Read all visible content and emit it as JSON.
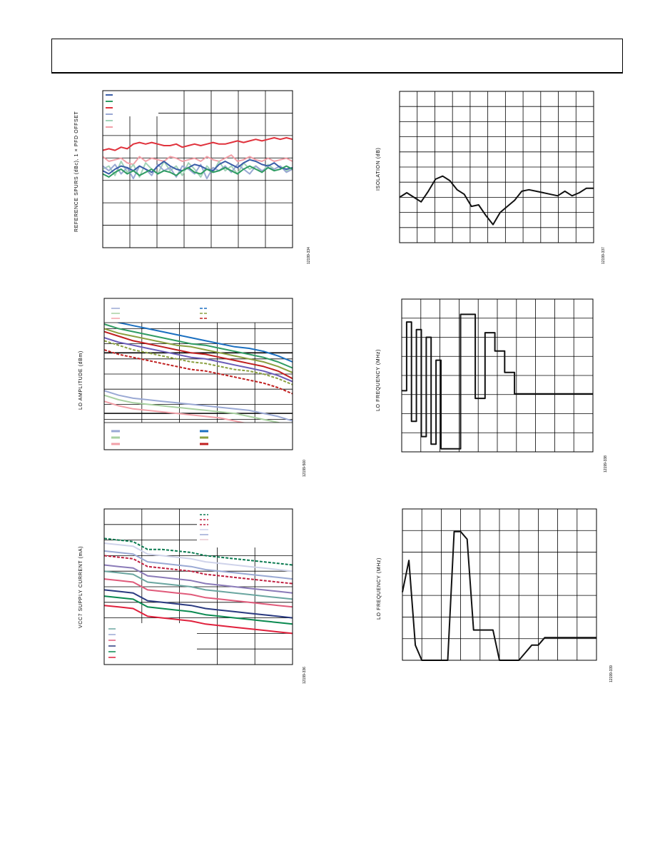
{
  "page": {
    "header": ""
  },
  "chart_data": [
    {
      "type": "line",
      "ylabel": "REFERENCE SPURS (dBc), 1 × PFD OFFSET",
      "fig_id": "12199-334",
      "legend_colors": [
        "#3a5da8",
        "#2f9c63",
        "#e0323c",
        "#9aa9d4",
        "#a3d3b9",
        "#f2a0a8"
      ],
      "grid": true,
      "series": [
        {
          "color": "#e0323c",
          "values": [
            0.62,
            0.63,
            0.62,
            0.64,
            0.63,
            0.66,
            0.67,
            0.66,
            0.67,
            0.66,
            0.65,
            0.65,
            0.66,
            0.64,
            0.65,
            0.66,
            0.65,
            0.66,
            0.67,
            0.66,
            0.66,
            0.67,
            0.68,
            0.67,
            0.68,
            0.69,
            0.68,
            0.69,
            0.7,
            0.69,
            0.7,
            0.69
          ]
        },
        {
          "color": "#f2a0a8",
          "values": [
            0.58,
            0.55,
            0.56,
            0.57,
            0.54,
            0.53,
            0.58,
            0.55,
            0.57,
            0.56,
            0.55,
            0.58,
            0.57,
            0.55,
            0.56,
            0.57,
            0.55,
            0.58,
            0.56,
            0.55,
            0.57,
            0.59,
            0.55,
            0.56,
            0.58,
            0.56,
            0.55,
            0.57,
            0.55,
            0.56,
            0.57,
            0.55
          ]
        },
        {
          "color": "#a3d3b9",
          "values": [
            0.5,
            0.52,
            0.46,
            0.55,
            0.48,
            0.53,
            0.45,
            0.54,
            0.5,
            0.47,
            0.55,
            0.49,
            0.52,
            0.46,
            0.54,
            0.5,
            0.45,
            0.52,
            0.48,
            0.55,
            0.49,
            0.52,
            0.47,
            0.54,
            0.5,
            0.52,
            0.48,
            0.53,
            0.5,
            0.52,
            0.49,
            0.51
          ]
        },
        {
          "color": "#9aa9d4",
          "values": [
            0.52,
            0.49,
            0.53,
            0.47,
            0.51,
            0.44,
            0.52,
            0.5,
            0.46,
            0.53,
            0.49,
            0.51,
            0.45,
            0.52,
            0.5,
            0.47,
            0.53,
            0.44,
            0.51,
            0.49,
            0.52,
            0.48,
            0.53,
            0.5,
            0.47,
            0.52,
            0.49,
            0.51,
            0.5,
            0.52,
            0.48,
            0.5
          ]
        },
        {
          "color": "#3a5da8",
          "values": [
            0.49,
            0.47,
            0.5,
            0.52,
            0.51,
            0.49,
            0.52,
            0.5,
            0.48,
            0.52,
            0.55,
            0.52,
            0.5,
            0.49,
            0.51,
            0.53,
            0.52,
            0.5,
            0.49,
            0.53,
            0.55,
            0.53,
            0.51,
            0.54,
            0.56,
            0.55,
            0.53,
            0.52,
            0.54,
            0.51,
            0.5,
            0.51
          ]
        },
        {
          "color": "#2f9c63",
          "values": [
            0.47,
            0.45,
            0.48,
            0.5,
            0.47,
            0.49,
            0.46,
            0.48,
            0.5,
            0.47,
            0.49,
            0.48,
            0.46,
            0.49,
            0.51,
            0.48,
            0.47,
            0.5,
            0.48,
            0.49,
            0.51,
            0.49,
            0.47,
            0.5,
            0.52,
            0.5,
            0.48,
            0.51,
            0.49,
            0.5,
            0.52,
            0.5
          ]
        }
      ]
    },
    {
      "type": "line",
      "ylabel": "ISOLATION (dB)",
      "fig_id": "12199-337",
      "grid": true,
      "series": [
        {
          "color": "#111111",
          "values": [
            0.3,
            0.33,
            0.3,
            0.27,
            0.34,
            0.42,
            0.44,
            0.41,
            0.35,
            0.32,
            0.24,
            0.25,
            0.18,
            0.12,
            0.2,
            0.24,
            0.28,
            0.34,
            0.35,
            0.34,
            0.33,
            0.32,
            0.31,
            0.34,
            0.31,
            0.33,
            0.36,
            0.36
          ]
        }
      ]
    },
    {
      "type": "line",
      "ylabel": "LO AMPLITUDE (dBm)",
      "fig_id": "12199-500",
      "legend_colors": [
        "#9aa9d4",
        "#a8d0a0",
        "#f2a0a8",
        "#1a6fc0",
        "#8aa040",
        "#c02020"
      ],
      "grid": true,
      "series": [
        {
          "color": "#1a6fc0",
          "dashed": false,
          "values": [
            0.87,
            0.84,
            0.82,
            0.8,
            0.78,
            0.76,
            0.74,
            0.72,
            0.7,
            0.68,
            0.67,
            0.65,
            0.62,
            0.58
          ]
        },
        {
          "color": "#2f9c63",
          "dashed": false,
          "values": [
            0.83,
            0.8,
            0.78,
            0.76,
            0.74,
            0.72,
            0.7,
            0.69,
            0.67,
            0.65,
            0.63,
            0.61,
            0.58,
            0.54
          ]
        },
        {
          "color": "#8aa040",
          "dashed": false,
          "values": [
            0.8,
            0.77,
            0.75,
            0.73,
            0.71,
            0.69,
            0.68,
            0.66,
            0.64,
            0.62,
            0.6,
            0.58,
            0.55,
            0.51
          ]
        },
        {
          "color": "#c02020",
          "dashed": false,
          "values": [
            0.78,
            0.75,
            0.72,
            0.7,
            0.68,
            0.66,
            0.64,
            0.63,
            0.61,
            0.59,
            0.57,
            0.55,
            0.52,
            0.47
          ]
        },
        {
          "color": "#6a5db8",
          "dashed": false,
          "values": [
            0.74,
            0.71,
            0.69,
            0.67,
            0.65,
            0.63,
            0.61,
            0.6,
            0.58,
            0.56,
            0.54,
            0.52,
            0.49,
            0.45
          ]
        },
        {
          "color": "#8aa040",
          "dashed": true,
          "values": [
            0.72,
            0.69,
            0.66,
            0.64,
            0.62,
            0.6,
            0.58,
            0.57,
            0.55,
            0.53,
            0.52,
            0.5,
            0.47,
            0.43
          ]
        },
        {
          "color": "#c02020",
          "dashed": true,
          "values": [
            0.66,
            0.63,
            0.61,
            0.59,
            0.57,
            0.55,
            0.53,
            0.52,
            0.5,
            0.48,
            0.46,
            0.44,
            0.41,
            0.37
          ]
        },
        {
          "color": "#9aa9d4",
          "dashed": false,
          "values": [
            0.39,
            0.36,
            0.34,
            0.33,
            0.32,
            0.31,
            0.3,
            0.29,
            0.28,
            0.27,
            0.26,
            0.24,
            0.22,
            0.19
          ]
        },
        {
          "color": "#a8d0a0",
          "dashed": false,
          "values": [
            0.36,
            0.33,
            0.31,
            0.3,
            0.29,
            0.28,
            0.27,
            0.26,
            0.25,
            0.24,
            0.22,
            0.2,
            0.18,
            0.15
          ]
        },
        {
          "color": "#f2a0a8",
          "dashed": false,
          "values": [
            0.32,
            0.29,
            0.27,
            0.26,
            0.25,
            0.24,
            0.23,
            0.22,
            0.21,
            0.19,
            0.17,
            0.15,
            0.12,
            0.09
          ]
        }
      ]
    },
    {
      "type": "line",
      "ylabel": "LO FREQUENCY (MHz)",
      "fig_id": "12199-338",
      "grid": true,
      "series": [
        {
          "color": "#111111",
          "step": true,
          "values": [
            0.4,
            0.85,
            0.2,
            0.8,
            0.1,
            0.75,
            0.05,
            0.6,
            0.02,
            0.02,
            0.02,
            0.02,
            0.9,
            0.9,
            0.9,
            0.35,
            0.35,
            0.78,
            0.78,
            0.66,
            0.66,
            0.52,
            0.52,
            0.38,
            0.38,
            0.38,
            0.38,
            0.38,
            0.38,
            0.38,
            0.38,
            0.38,
            0.38,
            0.38,
            0.38,
            0.38,
            0.38,
            0.38,
            0.38,
            0.38
          ]
        }
      ]
    },
    {
      "type": "line",
      "ylabel": "VCC7 SUPPLY CURRENT (mA)",
      "fig_id": "12199-336",
      "legend_colors": [
        "#6aa6a0",
        "#9aa9d4",
        "#e05a7a",
        "#2a3a80",
        "#0a8a50",
        "#e0203c"
      ],
      "grid": true,
      "series": [
        {
          "color": "#0a7a50",
          "dashed": true,
          "values": [
            0.81,
            0.8,
            0.79,
            0.74,
            0.74,
            0.73,
            0.72,
            0.7,
            0.69,
            0.68,
            0.67,
            0.66,
            0.65,
            0.64
          ]
        },
        {
          "color": "#cfd3ea",
          "dashed": false,
          "values": [
            0.78,
            0.77,
            0.76,
            0.71,
            0.7,
            0.69,
            0.68,
            0.66,
            0.65,
            0.64,
            0.63,
            0.62,
            0.61,
            0.6
          ]
        },
        {
          "color": "#9aa9d4",
          "dashed": false,
          "values": [
            0.73,
            0.72,
            0.71,
            0.66,
            0.65,
            0.64,
            0.63,
            0.61,
            0.6,
            0.59,
            0.58,
            0.57,
            0.56,
            0.55
          ]
        },
        {
          "color": "#c02040",
          "dashed": true,
          "values": [
            0.7,
            0.69,
            0.68,
            0.63,
            0.62,
            0.61,
            0.6,
            0.58,
            0.57,
            0.56,
            0.55,
            0.54,
            0.53,
            0.52
          ]
        },
        {
          "color": "#8a7ab8",
          "dashed": false,
          "values": [
            0.64,
            0.63,
            0.62,
            0.57,
            0.56,
            0.55,
            0.54,
            0.52,
            0.51,
            0.5,
            0.49,
            0.48,
            0.47,
            0.46
          ]
        },
        {
          "color": "#6aa6a0",
          "dashed": false,
          "values": [
            0.6,
            0.59,
            0.58,
            0.53,
            0.52,
            0.51,
            0.5,
            0.48,
            0.47,
            0.46,
            0.45,
            0.44,
            0.43,
            0.42
          ]
        },
        {
          "color": "#e05a7a",
          "dashed": false,
          "values": [
            0.55,
            0.54,
            0.53,
            0.48,
            0.47,
            0.46,
            0.45,
            0.43,
            0.42,
            0.41,
            0.4,
            0.39,
            0.38,
            0.37
          ]
        },
        {
          "color": "#2a3a80",
          "dashed": false,
          "values": [
            0.48,
            0.47,
            0.46,
            0.41,
            0.4,
            0.39,
            0.38,
            0.36,
            0.35,
            0.34,
            0.33,
            0.32,
            0.31,
            0.3
          ]
        },
        {
          "color": "#0a8a50",
          "dashed": false,
          "values": [
            0.44,
            0.43,
            0.42,
            0.37,
            0.36,
            0.35,
            0.34,
            0.32,
            0.31,
            0.3,
            0.29,
            0.28,
            0.27,
            0.26
          ]
        },
        {
          "color": "#e0203c",
          "dashed": false,
          "values": [
            0.38,
            0.37,
            0.36,
            0.31,
            0.3,
            0.29,
            0.28,
            0.26,
            0.25,
            0.24,
            0.23,
            0.22,
            0.21,
            0.2
          ]
        }
      ]
    },
    {
      "type": "line",
      "ylabel": "LO FREQUENCY (MHz)",
      "fig_id": "12199-339",
      "grid": true,
      "series": [
        {
          "color": "#111111",
          "values": [
            0.45,
            0.66,
            0.1,
            0.0,
            0.0,
            0.0,
            0.0,
            0.0,
            0.85,
            0.85,
            0.8,
            0.2,
            0.2,
            0.2,
            0.2,
            0.0,
            0.0,
            0.0,
            0.0,
            0.05,
            0.1,
            0.1,
            0.15,
            0.15,
            0.15,
            0.15,
            0.15,
            0.15,
            0.15,
            0.15,
            0.15
          ]
        }
      ]
    }
  ]
}
